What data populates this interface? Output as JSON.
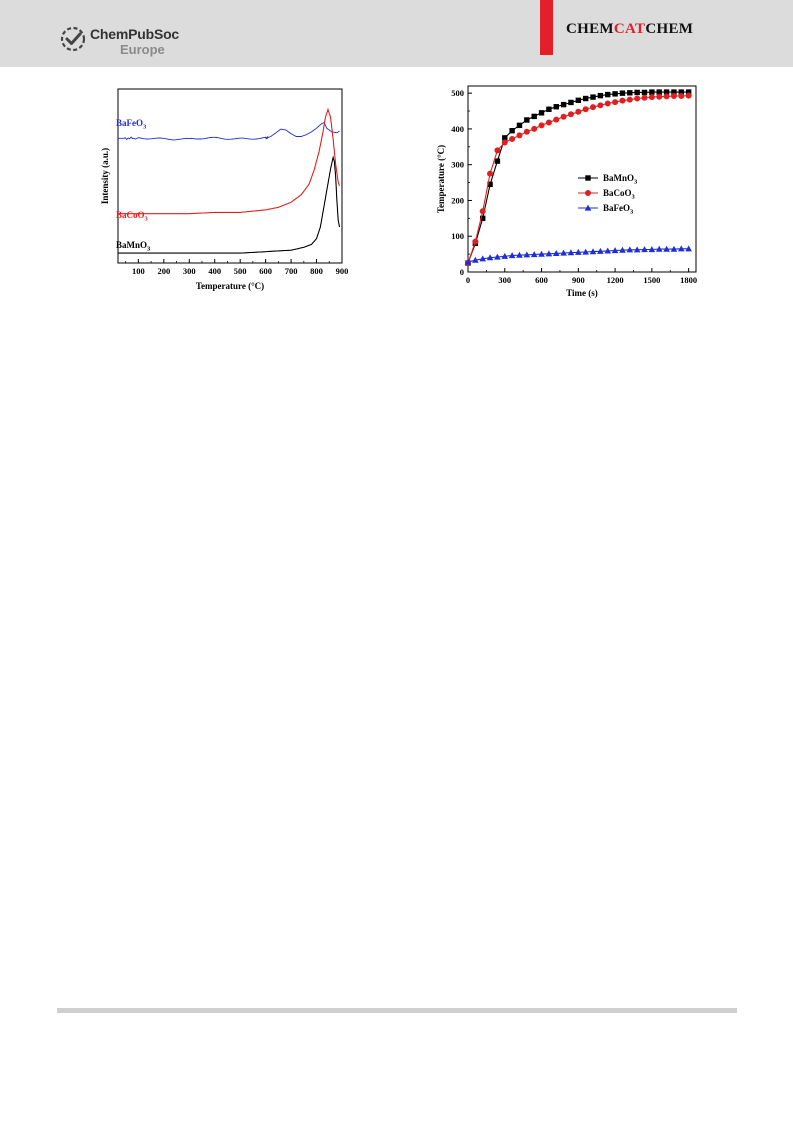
{
  "header": {
    "publisher_name": "ChemPubSoc",
    "publisher_sub": "Europe",
    "journal_part1": "CHEM",
    "journal_part2": "CAT",
    "journal_part3": "CHEM",
    "accent_color": "#e3202a",
    "background_color": "#dcdcdc"
  },
  "chart_data": [
    {
      "type": "line",
      "title": "",
      "xlabel": "Temperature  (°C)",
      "ylabel": "Intensity (a.u.)",
      "xlim": [
        20,
        900
      ],
      "xticks": [
        100,
        200,
        300,
        400,
        500,
        600,
        700,
        800,
        900
      ],
      "yticks_shown": false,
      "series": [
        {
          "name": "BaFeO",
          "subscript": "3",
          "color": "#1f2fd6",
          "x": [
            20,
            100,
            200,
            300,
            400,
            500,
            600,
            620,
            640,
            660,
            680,
            700,
            720,
            740,
            760,
            780,
            800,
            820,
            830,
            840,
            860,
            880,
            890
          ],
          "y": [
            0.79,
            0.79,
            0.79,
            0.78,
            0.79,
            0.79,
            0.79,
            0.81,
            0.85,
            0.89,
            0.88,
            0.84,
            0.81,
            0.81,
            0.83,
            0.86,
            0.9,
            0.95,
            0.96,
            0.9,
            0.86,
            0.85,
            0.87
          ]
        },
        {
          "name": "BaCoO",
          "subscript": "3",
          "color": "#e02020",
          "x": [
            20,
            100,
            200,
            300,
            400,
            500,
            550,
            600,
            650,
            700,
            740,
            770,
            790,
            810,
            825,
            835,
            845,
            855,
            865,
            875,
            885,
            890
          ],
          "y": [
            0.16,
            0.16,
            0.16,
            0.16,
            0.17,
            0.17,
            0.18,
            0.19,
            0.21,
            0.25,
            0.31,
            0.39,
            0.5,
            0.65,
            0.8,
            0.92,
            0.98,
            0.92,
            0.75,
            0.55,
            0.41,
            0.38
          ]
        },
        {
          "name": "BaMnO",
          "subscript": "3",
          "color": "#000000",
          "x": [
            20,
            100,
            200,
            300,
            400,
            500,
            600,
            700,
            750,
            780,
            800,
            815,
            825,
            835,
            845,
            855,
            865,
            870,
            875,
            880,
            885,
            890
          ],
          "y": [
            0.02,
            0.02,
            0.02,
            0.02,
            0.02,
            0.02,
            0.03,
            0.04,
            0.06,
            0.08,
            0.12,
            0.2,
            0.3,
            0.4,
            0.5,
            0.6,
            0.68,
            0.65,
            0.55,
            0.38,
            0.25,
            0.2
          ]
        }
      ]
    },
    {
      "type": "line",
      "title": "",
      "xlabel": "Time (s)",
      "ylabel": "Temperature (°C)",
      "xlim": [
        0,
        1860
      ],
      "ylim": [
        0,
        520
      ],
      "xticks": [
        0,
        300,
        600,
        900,
        1200,
        1500,
        1800
      ],
      "yticks": [
        0,
        100,
        200,
        300,
        400,
        500
      ],
      "legend": "right-center",
      "series": [
        {
          "name": "BaMnO",
          "subscript": "3",
          "color": "#000000",
          "marker": "square",
          "x": [
            0,
            60,
            120,
            180,
            240,
            300,
            360,
            420,
            480,
            540,
            600,
            660,
            720,
            780,
            840,
            900,
            960,
            1020,
            1080,
            1140,
            1200,
            1260,
            1320,
            1380,
            1440,
            1500,
            1560,
            1620,
            1680,
            1740,
            1800
          ],
          "y": [
            25,
            80,
            150,
            245,
            310,
            375,
            395,
            410,
            425,
            435,
            445,
            455,
            462,
            468,
            474,
            480,
            485,
            489,
            493,
            496,
            498,
            500,
            501,
            502,
            502,
            503,
            503,
            503,
            503,
            503,
            503
          ]
        },
        {
          "name": "BaCoO",
          "subscript": "3",
          "color": "#e02020",
          "marker": "circle",
          "x": [
            0,
            60,
            120,
            180,
            240,
            300,
            360,
            420,
            480,
            540,
            600,
            660,
            720,
            780,
            840,
            900,
            960,
            1020,
            1080,
            1140,
            1200,
            1260,
            1320,
            1380,
            1440,
            1500,
            1560,
            1620,
            1680,
            1740,
            1800
          ],
          "y": [
            25,
            85,
            170,
            275,
            340,
            362,
            372,
            382,
            392,
            400,
            410,
            418,
            426,
            434,
            441,
            448,
            455,
            461,
            466,
            471,
            475,
            479,
            482,
            485,
            487,
            489,
            490,
            491,
            492,
            492,
            493
          ]
        },
        {
          "name": "BaFeO",
          "subscript": "3",
          "color": "#1f2fd6",
          "marker": "triangle",
          "x": [
            0,
            60,
            120,
            180,
            240,
            300,
            360,
            420,
            480,
            540,
            600,
            660,
            720,
            780,
            840,
            900,
            960,
            1020,
            1080,
            1140,
            1200,
            1260,
            1320,
            1380,
            1440,
            1500,
            1560,
            1620,
            1680,
            1740,
            1800
          ],
          "y": [
            28,
            33,
            37,
            40,
            42,
            44,
            46,
            47,
            48,
            49,
            50,
            51,
            52,
            53,
            54,
            55,
            56,
            57,
            58,
            59,
            60,
            61,
            62,
            62,
            63,
            63,
            64,
            64,
            64,
            65,
            65
          ]
        }
      ]
    }
  ]
}
